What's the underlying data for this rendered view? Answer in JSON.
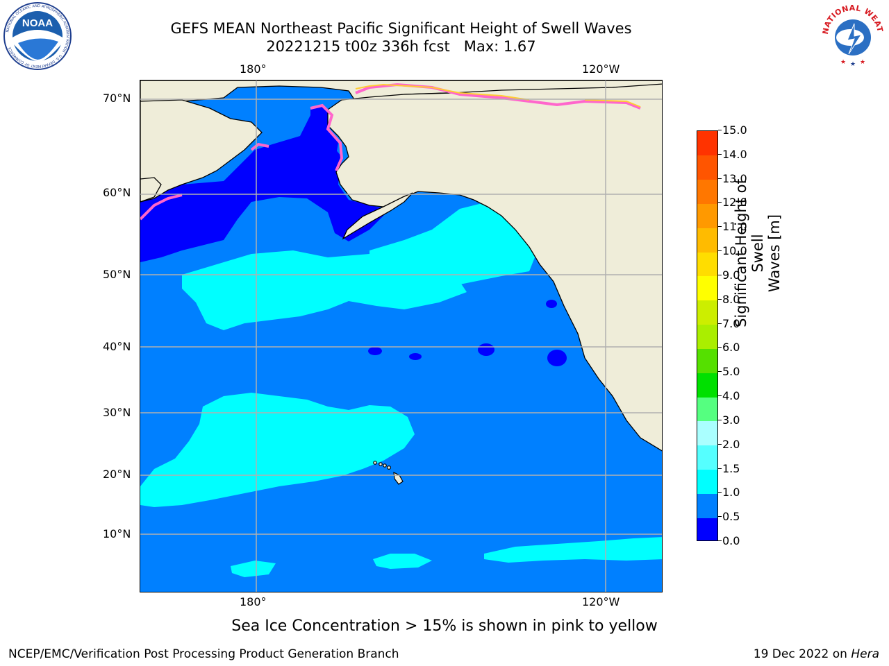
{
  "header": {
    "title_line1": "GEFS MEAN Northeast Pacific Significant Height of Swell Waves",
    "title_line2": "20221215 t00z 336h fcst   Max: 1.67"
  },
  "logos": {
    "noaa": "NOAA",
    "noaa_ring": "NATIONAL OCEANIC AND ATMOSPHERIC ADMINISTRATION · U.S. DEPARTMENT OF COMMERCE",
    "nws_ring": "NATIONAL WEATHER SERVICE"
  },
  "map": {
    "lon_labels": [
      "180°",
      "120°W"
    ],
    "lat_labels": [
      "70°N",
      "60°N",
      "50°N",
      "40°N",
      "30°N",
      "20°N",
      "10°N"
    ],
    "colors": {
      "land": "#efedd9",
      "ocean_0_1": "#0080ff",
      "ocean_1_1_5": "#00ffff",
      "ocean_0_0_5": "#0000ff",
      "grid": "#b0b0b0"
    }
  },
  "colorbar": {
    "ticks": [
      "15.0",
      "14.0",
      "13.0",
      "12.0",
      "11.0",
      "10.0",
      "9.0",
      "8.0",
      "7.0",
      "6.0",
      "5.0",
      "4.0",
      "3.0",
      "2.0",
      "1.5",
      "1.0",
      "0.5",
      "0.0"
    ],
    "colors": [
      "#0000ff",
      "#0080ff",
      "#00ffff",
      "#55ffff",
      "#aaffff",
      "#55ff80",
      "#00e000",
      "#55e000",
      "#aaee00",
      "#ccee00",
      "#ffff00",
      "#ffdd00",
      "#ffbb00",
      "#ff9900",
      "#ff7700",
      "#ff5500",
      "#ff3300"
    ],
    "label_line1": "Significant Height of Swell",
    "label_line2": "Waves [m]"
  },
  "caption": "Sea Ice Concentration > 15% is shown in pink to yellow",
  "footer": {
    "left": "NCEP/EMC/Verification Post Processing Product Generation Branch",
    "right_date": "19 Dec 2022 on",
    "right_host": "Hera"
  }
}
